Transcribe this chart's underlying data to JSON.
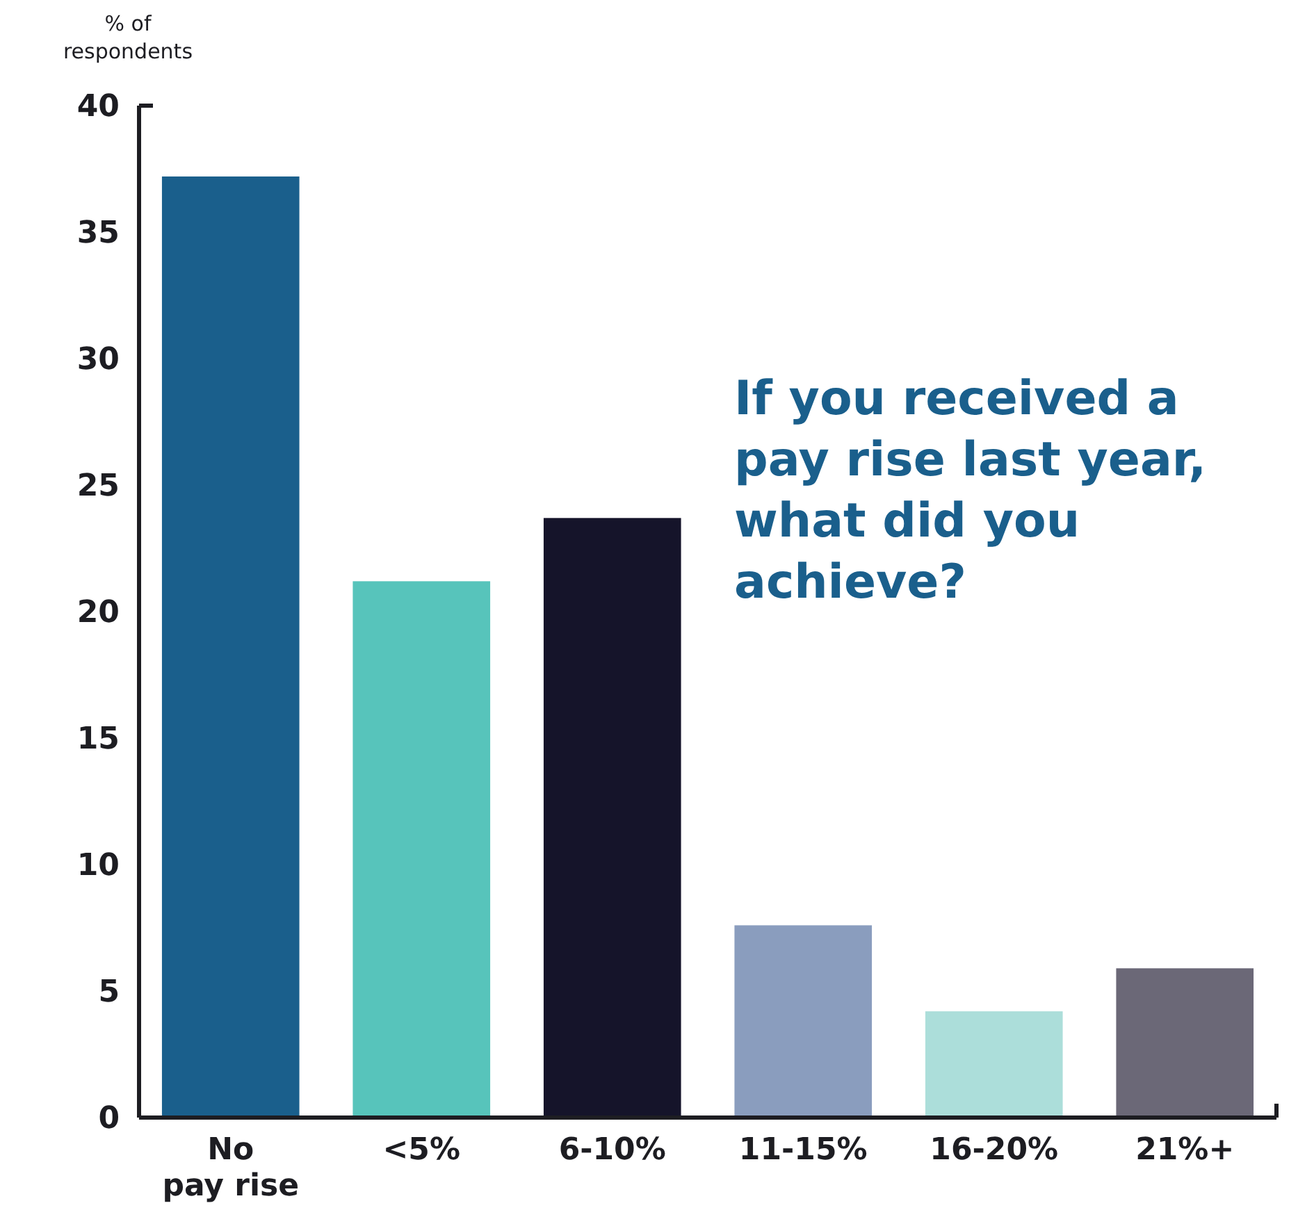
{
  "chart_data": {
    "type": "bar",
    "title": "If you received a pay rise last year, what did you achieve?",
    "ylabel": "% of respondents",
    "categories": [
      "No pay rise",
      "<5%",
      "6-10%",
      "11-15%",
      "16-20%",
      "21%+"
    ],
    "values": [
      37.2,
      21.2,
      23.7,
      7.6,
      4.2,
      5.9
    ],
    "colors": [
      "#1a5f8c",
      "#57c4bb",
      "#15142a",
      "#8a9dbe",
      "#acdeda",
      "#6b6877"
    ],
    "ylim": [
      0,
      40
    ],
    "yticks": [
      0,
      5,
      10,
      15,
      20,
      25,
      30,
      35,
      40
    ],
    "grid": false
  }
}
